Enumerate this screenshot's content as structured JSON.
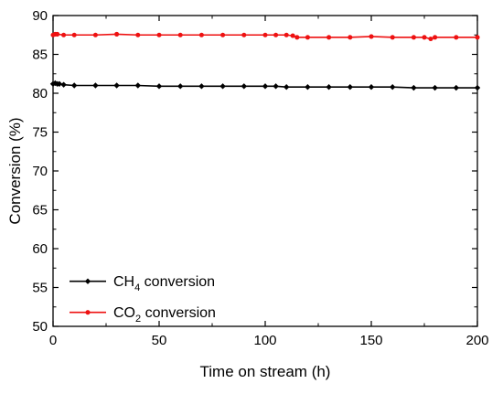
{
  "chart_data": {
    "type": "line",
    "title": "",
    "xlabel": "Time on stream (h)",
    "ylabel": "Conversion (%)",
    "xlim": [
      0,
      200
    ],
    "ylim": [
      50,
      90
    ],
    "x_ticks": [
      "0",
      "50",
      "100",
      "150",
      "200"
    ],
    "y_ticks": [
      "50",
      "55",
      "60",
      "65",
      "70",
      "75",
      "80",
      "85",
      "90"
    ],
    "grid": false,
    "legend_position": "bottom-left",
    "series": [
      {
        "name": "CH4 conversion",
        "name_main": "CH",
        "name_sub": "4",
        "name_rest": " conversion",
        "color": "#000000",
        "marker": "diamond",
        "x": [
          0,
          1,
          2,
          3,
          5,
          10,
          20,
          30,
          40,
          50,
          60,
          70,
          80,
          90,
          100,
          105,
          110,
          120,
          130,
          140,
          150,
          160,
          170,
          180,
          190,
          200
        ],
        "y": [
          81.2,
          81.3,
          81.2,
          81.2,
          81.1,
          81.0,
          81.0,
          81.0,
          81.0,
          80.9,
          80.9,
          80.9,
          80.9,
          80.9,
          80.9,
          80.9,
          80.8,
          80.8,
          80.8,
          80.8,
          80.8,
          80.8,
          80.7,
          80.7,
          80.7,
          80.7
        ]
      },
      {
        "name": "CO2 conversion",
        "name_main": "CO",
        "name_sub": "2",
        "name_rest": " conversion",
        "color": "#ee1111",
        "marker": "circle",
        "x": [
          0,
          1,
          2,
          5,
          10,
          20,
          30,
          40,
          50,
          60,
          70,
          80,
          90,
          100,
          105,
          110,
          113,
          115,
          120,
          130,
          140,
          150,
          160,
          170,
          175,
          178,
          180,
          190,
          200
        ],
        "y": [
          87.5,
          87.6,
          87.6,
          87.5,
          87.5,
          87.5,
          87.6,
          87.5,
          87.5,
          87.5,
          87.5,
          87.5,
          87.5,
          87.5,
          87.5,
          87.5,
          87.4,
          87.2,
          87.2,
          87.2,
          87.2,
          87.3,
          87.2,
          87.2,
          87.2,
          87.0,
          87.2,
          87.2,
          87.2
        ]
      }
    ]
  }
}
